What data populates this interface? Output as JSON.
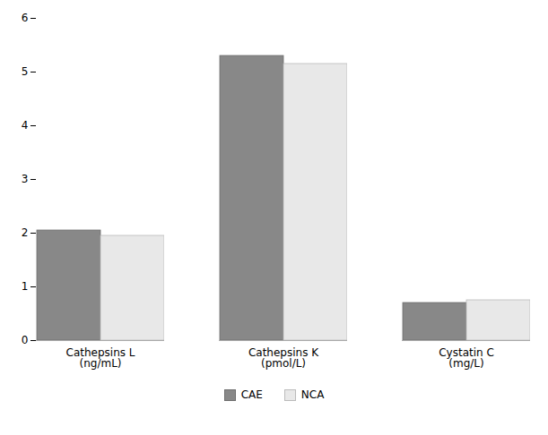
{
  "chart_data": {
    "type": "bar",
    "categories": [
      "Cathepsins L\n(ng/mL)",
      "Cathepsins K\n(pmol/L)",
      "Cystatin C\n(mg/L)"
    ],
    "series": [
      {
        "name": "CAE",
        "color": "#888888",
        "values": [
          2.05,
          5.3,
          0.7
        ]
      },
      {
        "name": "NCA",
        "color": "#e8e8e8",
        "values": [
          1.95,
          5.15,
          0.75
        ]
      }
    ],
    "ylim": [
      0,
      6
    ],
    "yticks": [
      0,
      1,
      2,
      3,
      4,
      5,
      6
    ],
    "grid": false,
    "legend": "bottom"
  }
}
